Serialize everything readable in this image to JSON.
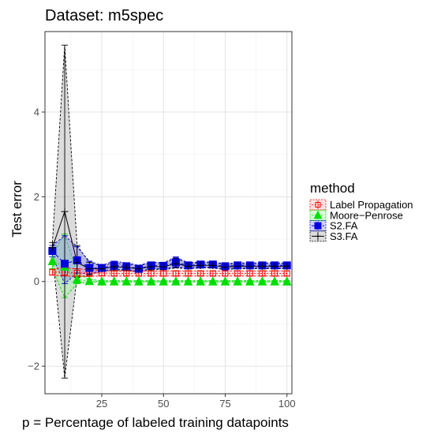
{
  "chart_data": {
    "type": "line",
    "title": "Dataset: m5spec",
    "xlabel": "p = Percentage of labeled training datapoints",
    "ylabel": "Test error",
    "xlim": [
      2,
      102
    ],
    "ylim": [
      -2.65,
      5.9
    ],
    "x_ticks": [
      25,
      50,
      75,
      100
    ],
    "y_ticks": [
      -2,
      0,
      2,
      4
    ],
    "grid": true,
    "legend": {
      "title": "method",
      "position": "right"
    },
    "x": [
      5,
      10,
      15,
      20,
      25,
      30,
      35,
      40,
      45,
      50,
      55,
      60,
      65,
      70,
      75,
      80,
      85,
      90,
      95,
      100
    ],
    "series": [
      {
        "name": "Label Propagation",
        "color": "#ff0000",
        "marker": "square-open",
        "line": "dotted",
        "values": [
          0.22,
          0.22,
          0.2,
          0.2,
          0.2,
          0.19,
          0.19,
          0.19,
          0.19,
          0.19,
          0.19,
          0.19,
          0.19,
          0.19,
          0.19,
          0.19,
          0.19,
          0.19,
          0.19,
          0.19
        ],
        "lower": [
          0.15,
          0.13,
          0.12,
          0.12,
          0.13,
          0.13,
          0.13,
          0.13,
          0.13,
          0.13,
          0.13,
          0.13,
          0.13,
          0.13,
          0.13,
          0.13,
          0.13,
          0.13,
          0.13,
          0.13
        ],
        "upper": [
          0.3,
          0.32,
          0.3,
          0.28,
          0.26,
          0.25,
          0.25,
          0.25,
          0.25,
          0.25,
          0.25,
          0.25,
          0.25,
          0.25,
          0.25,
          0.25,
          0.25,
          0.25,
          0.25,
          0.25
        ]
      },
      {
        "name": "Moore−Penrose",
        "color": "#00dd00",
        "marker": "triangle",
        "line": "dotted",
        "values": [
          0.48,
          0.35,
          0.05,
          0.01,
          0.0,
          0.0,
          0.0,
          0.0,
          0.0,
          0.0,
          0.0,
          0.0,
          0.0,
          0.0,
          0.0,
          0.0,
          0.0,
          0.0,
          0.0,
          0.0
        ],
        "lower": [
          0.3,
          -0.38,
          -0.05,
          -0.02,
          -0.01,
          -0.01,
          -0.01,
          -0.01,
          -0.01,
          -0.01,
          -0.01,
          -0.01,
          -0.01,
          -0.01,
          -0.01,
          -0.01,
          -0.01,
          -0.01,
          -0.01,
          -0.01
        ],
        "upper": [
          0.65,
          1.12,
          0.2,
          0.05,
          0.02,
          0.02,
          0.02,
          0.02,
          0.02,
          0.02,
          0.02,
          0.02,
          0.02,
          0.02,
          0.02,
          0.02,
          0.02,
          0.02,
          0.02,
          0.02
        ]
      },
      {
        "name": "S2.FA",
        "color": "#0000dd",
        "marker": "square",
        "line": "dashed",
        "values": [
          0.72,
          0.42,
          0.5,
          0.32,
          0.32,
          0.38,
          0.36,
          0.3,
          0.38,
          0.37,
          0.45,
          0.38,
          0.4,
          0.4,
          0.36,
          0.38,
          0.38,
          0.38,
          0.38,
          0.38
        ],
        "lower": [
          0.58,
          -0.05,
          0.2,
          0.18,
          0.26,
          0.28,
          0.28,
          0.24,
          0.3,
          0.3,
          0.34,
          0.32,
          0.34,
          0.34,
          0.3,
          0.32,
          0.32,
          0.32,
          0.32,
          0.32
        ],
        "upper": [
          0.85,
          1.08,
          0.82,
          0.48,
          0.38,
          0.48,
          0.44,
          0.38,
          0.46,
          0.44,
          0.58,
          0.44,
          0.46,
          0.46,
          0.42,
          0.44,
          0.44,
          0.44,
          0.44,
          0.44
        ]
      },
      {
        "name": "S3.FA",
        "color": "#000000",
        "marker": "cross",
        "line": "solid",
        "values": [
          0.8,
          1.65,
          0.45,
          0.3,
          0.3,
          0.35,
          0.33,
          0.3,
          0.35,
          0.35,
          0.42,
          0.36,
          0.38,
          0.38,
          0.34,
          0.36,
          0.36,
          0.36,
          0.36,
          0.36
        ],
        "lower": [
          0.68,
          -2.28,
          0.1,
          0.16,
          0.24,
          0.26,
          0.26,
          0.22,
          0.28,
          0.28,
          0.32,
          0.3,
          0.32,
          0.32,
          0.28,
          0.3,
          0.3,
          0.3,
          0.3,
          0.3
        ],
        "upper": [
          0.92,
          5.58,
          0.85,
          0.45,
          0.36,
          0.44,
          0.4,
          0.38,
          0.42,
          0.42,
          0.55,
          0.42,
          0.44,
          0.44,
          0.4,
          0.42,
          0.42,
          0.42,
          0.42,
          0.42
        ]
      }
    ]
  }
}
